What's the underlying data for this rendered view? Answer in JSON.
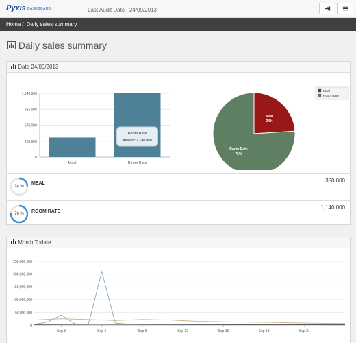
{
  "header": {
    "logo_text": "Pyxis",
    "logo_sub": "DASHBOARD",
    "audit_label": "Last Audit Date : 24/09/2013",
    "logout_icon": "logout-icon",
    "menu_icon": "menu-icon"
  },
  "breadcrumb": {
    "home": "Home",
    "separator": "/",
    "current": "Daily sales summary"
  },
  "page_title": "Daily sales summary",
  "daily_panel": {
    "title": "Date 24/09/2013"
  },
  "tooltip": {
    "title": "Room Rate",
    "amount_label": "Amount: 1,140,000"
  },
  "gauges": [
    {
      "label": "MEAL",
      "percent": 24,
      "percent_text": "24 %",
      "value": "350,000"
    },
    {
      "label": "ROOM RATE",
      "percent": 76,
      "percent_text": "76 %",
      "value": "1,140,000"
    }
  ],
  "month_panel": {
    "title": "Month Todate"
  },
  "colors": {
    "meal_bar": "#4e8098",
    "room_bar": "#4e8098",
    "meal_pie": "#9a1717",
    "room_pie": "#5f7f63",
    "gauge": "#3a8ed6",
    "line_blue": "#7fa8c9",
    "line_gold": "#c8b380"
  },
  "chart_data": [
    {
      "type": "bar",
      "categories": [
        "Meal",
        "Room Rate"
      ],
      "values": [
        350000,
        1140000
      ],
      "yticks": [
        "0",
        "285,000",
        "570,000",
        "855,000",
        "1,140,000"
      ],
      "ylim": [
        0,
        1140000
      ],
      "grid": true
    },
    {
      "type": "pie",
      "labels": [
        "Meal",
        "Room Rate"
      ],
      "values": [
        24,
        76
      ],
      "slice_labels": [
        "Meal\n24%",
        "Room Rate\n76%"
      ],
      "legend": [
        "Meal",
        "Room Rate"
      ],
      "legend_position": "top-right"
    },
    {
      "type": "line",
      "x_ticks": [
        "Sep 3",
        "Sep 6",
        "Sep 9",
        "Sep 12",
        "Sep 15",
        "Sep 18",
        "Sep 21"
      ],
      "yticks": [
        "0",
        "50,000,000",
        "100,000,000",
        "150,000,000",
        "200,000,000",
        "250,000,000"
      ],
      "ylim": [
        0,
        250000000
      ],
      "x_days": [
        1,
        24
      ],
      "series": [
        {
          "values": [
            [
              1,
              3000000
            ],
            [
              2,
              12000000
            ],
            [
              3,
              40000000
            ],
            [
              4,
              5000000
            ],
            [
              5,
              2000000
            ],
            [
              6,
              210000000
            ],
            [
              7,
              8000000
            ],
            [
              8,
              3000000
            ],
            [
              10,
              2000000
            ],
            [
              14,
              2000000
            ],
            [
              18,
              1000000
            ],
            [
              21,
              2000000
            ],
            [
              24,
              3000000
            ]
          ]
        },
        {
          "values": [
            [
              1,
              20000000
            ],
            [
              3,
              25000000
            ],
            [
              5,
              22000000
            ],
            [
              7,
              18000000
            ],
            [
              9,
              22000000
            ],
            [
              11,
              20000000
            ],
            [
              13,
              15000000
            ],
            [
              16,
              12000000
            ],
            [
              19,
              10000000
            ],
            [
              21,
              8000000
            ],
            [
              24,
              6000000
            ]
          ]
        },
        {
          "values": [
            [
              1,
              2000000
            ],
            [
              4,
              2500000
            ],
            [
              6,
              3000000
            ],
            [
              8,
              2500000
            ],
            [
              12,
              2000000
            ],
            [
              16,
              1500000
            ],
            [
              20,
              1500000
            ],
            [
              24,
              1000000
            ]
          ]
        }
      ],
      "grid": true
    }
  ]
}
